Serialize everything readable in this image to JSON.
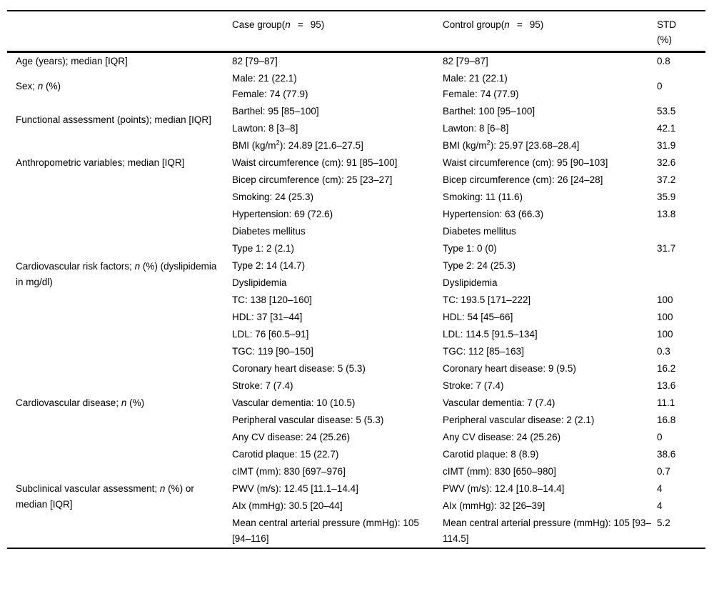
{
  "page": {
    "background": "#ffffff",
    "text_color": "#000000"
  },
  "table": {
    "header": {
      "row_label": "",
      "case_group": {
        "prefix": "Case group(",
        "n": "n",
        "equals": "=",
        "count": "95)"
      },
      "control_group": {
        "prefix": "Control group(",
        "n": "n",
        "equals": "=",
        "count": "95)"
      },
      "std": {
        "line1": "STD",
        "line2": "(%)"
      }
    },
    "groups": [
      {
        "label": [
          "Age (years); median [IQR]"
        ],
        "rows": [
          {
            "case": [
              "82 [79–87]"
            ],
            "control": [
              "82 [79–87]"
            ],
            "std": "0.8"
          }
        ]
      },
      {
        "label": [
          [
            "Sex; ",
            {
              "i": "n"
            },
            " (%)"
          ]
        ],
        "std_middle": true,
        "rows": [
          {
            "case": [
              "Male: 21 (22.1)",
              "Female: 74 (77.9)"
            ],
            "control": [
              "Male: 21 (22.1)",
              "Female: 74 (77.9)"
            ],
            "std": "0"
          }
        ]
      },
      {
        "label": [
          "Functional assessment (points); median [IQR]"
        ],
        "rows": [
          {
            "case": [
              "Barthel: 95 [85–100]"
            ],
            "control": [
              "Barthel: 100 [95–100]"
            ],
            "std": "53.5"
          },
          {
            "case": [
              "Lawton: 8 [3–8]"
            ],
            "control": [
              "Lawton: 8 [6–8]"
            ],
            "std": "42.1"
          }
        ]
      },
      {
        "label": [
          "Anthropometric variables; median [IQR]"
        ],
        "rows": [
          {
            "case": [
              [
                "BMI (kg/m",
                {
                  "sup": "2"
                },
                "): 24.89 [21.6–27.5]"
              ]
            ],
            "control": [
              [
                "BMI (kg/m",
                {
                  "sup": "2"
                },
                "): 25.97 [23.68–28.4]"
              ]
            ],
            "std": "31.9"
          },
          {
            "case": [
              "Waist circumference (cm): 91 [85–100]"
            ],
            "control": [
              "Waist circumference (cm): 95 [90–103]"
            ],
            "std": "32.6"
          },
          {
            "case": [
              "Bicep circumference (cm): 25 [23–27]"
            ],
            "control": [
              "Bicep circumference (cm): 26 [24–28]"
            ],
            "std": "37.2"
          }
        ]
      },
      {
        "label": [
          [
            "Cardiovascular risk factors; ",
            {
              "i": "n"
            },
            " (%) (dyslipidemia in mg/dl)"
          ]
        ],
        "rows": [
          {
            "case": [
              "Smoking: 24 (25.3)"
            ],
            "control": [
              "Smoking: 11 (11.6)"
            ],
            "std": "35.9"
          },
          {
            "case": [
              "Hypertension: 69 (72.6)"
            ],
            "control": [
              "Hypertension: 63 (66.3)"
            ],
            "std": "13.8"
          },
          {
            "case": [
              "Diabetes mellitus"
            ],
            "control": [
              "Diabetes mellitus"
            ],
            "std": ""
          },
          {
            "case": [
              "Type 1: 2 (2.1)"
            ],
            "control": [
              "Type 1: 0 (0)"
            ],
            "std": "31.7"
          },
          {
            "case": [
              "Type 2: 14 (14.7)"
            ],
            "control": [
              "Type 2: 24 (25.3)"
            ],
            "std": ""
          },
          {
            "case": [
              "Dyslipidemia"
            ],
            "control": [
              "Dyslipidemia"
            ],
            "std": ""
          },
          {
            "case": [
              "TC: 138 [120–160]"
            ],
            "control": [
              "TC: 193.5 [171–222]"
            ],
            "std": "100"
          },
          {
            "case": [
              "HDL: 37 [31–44]"
            ],
            "control": [
              "HDL: 54 [45–66]"
            ],
            "std": "100"
          },
          {
            "case": [
              "LDL: 76 [60.5–91]"
            ],
            "control": [
              "LDL: 114.5 [91.5–134]"
            ],
            "std": "100"
          },
          {
            "case": [
              "TGC: 119 [90–150]"
            ],
            "control": [
              "TGC: 112 [85–163]"
            ],
            "std": "0.3"
          }
        ]
      },
      {
        "label": [
          [
            "Cardiovascular disease; ",
            {
              "i": "n"
            },
            " (%)"
          ]
        ],
        "rows": [
          {
            "case": [
              "Coronary heart disease: 5 (5.3)"
            ],
            "control": [
              "Coronary heart disease: 9 (9.5)"
            ],
            "std": "16.2"
          },
          {
            "case": [
              "Stroke: 7 (7.4)"
            ],
            "control": [
              "Stroke: 7 (7.4)"
            ],
            "std": "13.6"
          },
          {
            "case": [
              "Vascular dementia: 10 (10.5)"
            ],
            "control": [
              "Vascular dementia: 7 (7.4)"
            ],
            "std": "11.1"
          },
          {
            "case": [
              "Peripheral vascular disease: 5 (5.3)"
            ],
            "control": [
              "Peripheral vascular disease: 2 (2.1)"
            ],
            "std": "16.8"
          },
          {
            "case": [
              "Any CV disease: 24 (25.26)"
            ],
            "control": [
              "Any CV disease: 24 (25.26)"
            ],
            "std": "0"
          }
        ]
      },
      {
        "label": [
          [
            "Subclinical vascular assessment; ",
            {
              "i": "n"
            },
            " (%) or median [IQR]"
          ]
        ],
        "rows": [
          {
            "case": [
              "Carotid plaque: 15 (22.7)"
            ],
            "control": [
              "Carotid plaque: 8 (8.9)"
            ],
            "std": "38.6"
          },
          {
            "case": [
              "cIMT (mm): 830 [697–976]"
            ],
            "control": [
              "cIMT (mm): 830 [650–980]"
            ],
            "std": "0.7"
          },
          {
            "case": [
              "PWV (m/s): 12.45 [11.1–14.4]"
            ],
            "control": [
              "PWV (m/s): 12.4 [10.8–14.4]"
            ],
            "std": "4"
          },
          {
            "case": [
              "AIx (mmHg): 30.5 [20–44]"
            ],
            "control": [
              "AIx (mmHg): 32 [26–39]"
            ],
            "std": "4"
          },
          {
            "case": [
              "Mean central arterial pressure (mmHg): 105 [94–116]"
            ],
            "control": [
              "Mean central arterial pressure (mmHg): 105 [93–114.5]"
            ],
            "std": "5.2"
          }
        ]
      }
    ]
  }
}
